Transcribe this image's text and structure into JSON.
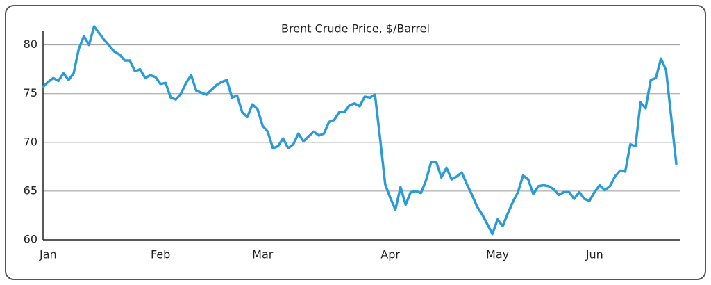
{
  "chart_data": {
    "type": "line",
    "title": "Brent Crude Price, $/Barrel",
    "categories": [
      null,
      "Jan",
      null,
      null,
      null,
      null,
      null,
      null,
      null,
      null,
      null,
      null,
      null,
      null,
      null,
      null,
      null,
      null,
      null,
      null,
      null,
      null,
      null,
      "Feb",
      null,
      null,
      null,
      null,
      null,
      null,
      null,
      null,
      null,
      null,
      null,
      null,
      null,
      null,
      null,
      null,
      null,
      null,
      null,
      "Mar",
      null,
      null,
      null,
      null,
      null,
      null,
      null,
      null,
      null,
      null,
      null,
      null,
      null,
      null,
      null,
      null,
      null,
      null,
      null,
      null,
      null,
      null,
      null,
      null,
      "Apr",
      null,
      null,
      null,
      null,
      null,
      null,
      null,
      null,
      null,
      null,
      null,
      null,
      null,
      null,
      null,
      null,
      null,
      null,
      null,
      null,
      "May",
      null,
      null,
      null,
      null,
      null,
      null,
      null,
      null,
      null,
      null,
      null,
      null,
      null,
      null,
      null,
      null,
      null,
      null,
      "Jun",
      null,
      null,
      null,
      null,
      null,
      null,
      null,
      null,
      null,
      null,
      null,
      null,
      null,
      null,
      null,
      null
    ],
    "values": [
      75.7,
      76.2,
      76.6,
      76.3,
      77.1,
      76.4,
      77.1,
      79.6,
      80.9,
      80.0,
      81.9,
      81.2,
      80.5,
      79.9,
      79.3,
      79.0,
      78.4,
      78.4,
      77.3,
      77.5,
      76.6,
      76.9,
      76.7,
      76.0,
      76.1,
      74.6,
      74.4,
      75.0,
      76.1,
      76.9,
      75.3,
      75.1,
      74.9,
      75.4,
      75.9,
      76.2,
      76.4,
      74.6,
      74.8,
      73.1,
      72.6,
      73.9,
      73.4,
      71.7,
      71.1,
      69.4,
      69.6,
      70.4,
      69.4,
      69.8,
      70.9,
      70.1,
      70.6,
      71.1,
      70.7,
      70.9,
      72.1,
      72.3,
      73.1,
      73.1,
      73.8,
      74.0,
      73.7,
      74.7,
      74.6,
      74.9,
      70.4,
      65.7,
      64.3,
      63.1,
      65.4,
      63.6,
      64.9,
      65.0,
      64.8,
      66.1,
      68.0,
      68.0,
      66.4,
      67.4,
      66.2,
      66.5,
      66.9,
      65.7,
      64.6,
      63.4,
      62.6,
      61.6,
      60.6,
      62.1,
      61.4,
      62.7,
      63.9,
      64.9,
      66.6,
      66.2,
      64.7,
      65.5,
      65.6,
      65.5,
      65.2,
      64.6,
      64.9,
      64.9,
      64.2,
      64.9,
      64.2,
      64.0,
      64.9,
      65.6,
      65.1,
      65.5,
      66.5,
      67.1,
      67.0,
      69.8,
      69.6,
      74.1,
      73.5,
      76.4,
      76.6,
      78.6,
      77.4,
      72.6,
      67.8
    ],
    "color": "#2b9bd6",
    "ylim": [
      60,
      81.4
    ],
    "yticks": [
      60,
      65,
      70,
      75,
      80
    ],
    "grid": true
  }
}
